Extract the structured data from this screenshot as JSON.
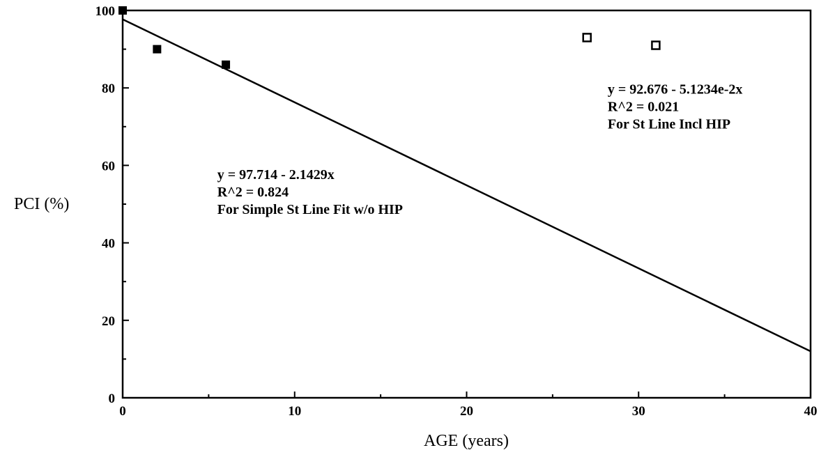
{
  "chart_data": {
    "type": "scatter",
    "title": "",
    "xlabel": "AGE (years)",
    "ylabel": "PCI (%)",
    "xlim": [
      0,
      40
    ],
    "ylim": [
      0,
      100
    ],
    "x_ticks": [
      0,
      10,
      20,
      30,
      40
    ],
    "y_ticks": [
      0,
      20,
      40,
      60,
      80,
      100
    ],
    "grid": false,
    "legend": "none",
    "series": [
      {
        "marker": "filled-square",
        "points": [
          {
            "x": 0,
            "y": 100
          },
          {
            "x": 2,
            "y": 90
          },
          {
            "x": 6,
            "y": 86
          }
        ]
      },
      {
        "marker": "hollow-square",
        "points": [
          {
            "x": 27,
            "y": 93
          },
          {
            "x": 31,
            "y": 91
          }
        ]
      }
    ],
    "fit_lines": [
      {
        "intercept": 97.714,
        "slope": -2.1429,
        "x_range": [
          0,
          40
        ]
      }
    ],
    "annotations": [
      {
        "lines": [
          "y = 97.714 - 2.1429x",
          "R^2 = 0.824",
          "For Simple St Line Fit w/o HIP"
        ],
        "anchor": {
          "x": 5.5,
          "y": 56.5
        }
      },
      {
        "lines": [
          "y = 92.676 - 5.1234e-2x",
          "R^2 = 0.021",
          "For St Line Incl HIP"
        ],
        "anchor": {
          "x": 28.2,
          "y": 78.5
        }
      }
    ]
  }
}
